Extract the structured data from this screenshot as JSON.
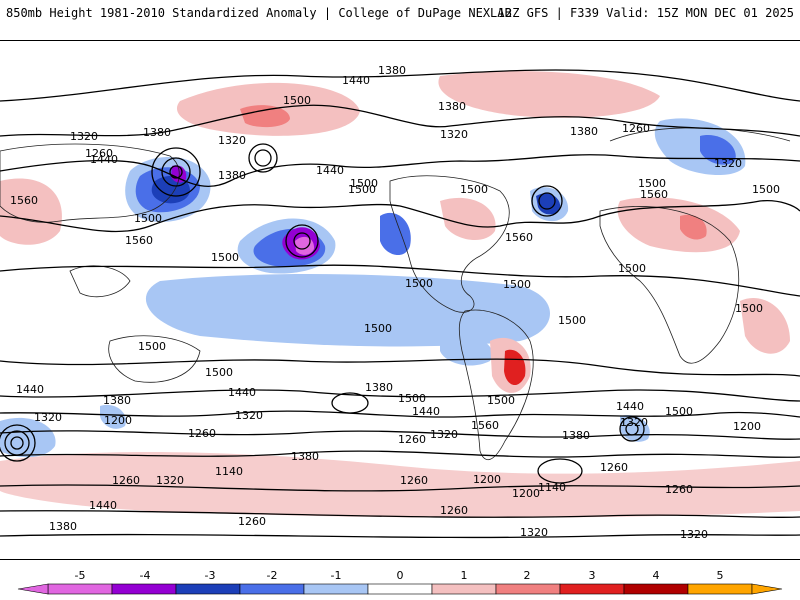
{
  "header": {
    "left_title": "850mb Height 1981-2010 Standardized Anomaly | College of DuPage NEXLAB",
    "right_title": "12Z GFS | F339 Valid: 15Z MON DEC 01 2025"
  },
  "contour_labels": [
    "1380",
    "1440",
    "1500",
    "1320",
    "1380",
    "1260",
    "1320",
    "1380",
    "1440",
    "1320",
    "1380",
    "1500",
    "1440",
    "1500",
    "1560",
    "1380",
    "1320",
    "1260",
    "1500",
    "1560",
    "1500",
    "1560",
    "1500",
    "1500",
    "1560",
    "1500",
    "1500",
    "1500",
    "1500",
    "1500",
    "1500",
    "1500",
    "1500",
    "1440",
    "1380",
    "1320",
    "1200",
    "1440",
    "1320",
    "1500",
    "1260",
    "1440",
    "1380",
    "1500",
    "1440",
    "1380",
    "1260",
    "1200",
    "1140",
    "1260",
    "1320",
    "1440",
    "1380",
    "1320",
    "1260",
    "1200",
    "1140",
    "1260",
    "1320",
    "1260",
    "1200",
    "1560",
    "1500",
    "1500",
    "1320",
    "1380",
    "1260",
    "1320",
    "1260"
  ],
  "colorbar": {
    "ticks": [
      "-5",
      "-4",
      "-3",
      "-2",
      "-1",
      "0",
      "1",
      "2",
      "3",
      "4",
      "5"
    ],
    "colors": [
      "#e066e0",
      "#9400d3",
      "#1c3fb8",
      "#4a6fe8",
      "#a8c6f4",
      "#ffffff",
      "#f4c0c0",
      "#f08080",
      "#e02020",
      "#b00000",
      "#ffa500"
    ]
  }
}
